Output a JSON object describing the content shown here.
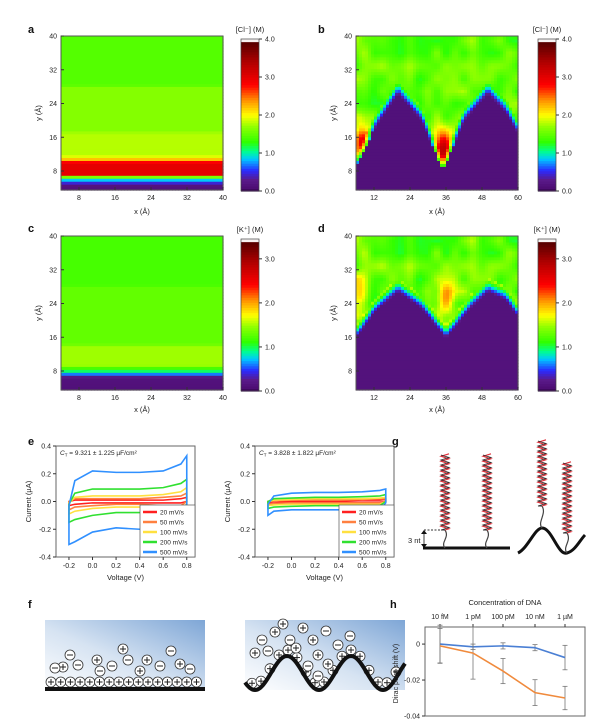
{
  "panel_labels": {
    "a": "a",
    "b": "b",
    "c": "c",
    "d": "d",
    "e": "e",
    "f": "f",
    "g": "g",
    "h": "h"
  },
  "chart_data": [
    {
      "id": "a",
      "type": "heatmap",
      "xlabel": "x (Å)",
      "ylabel": "y (Å)",
      "xlim": [
        4,
        40
      ],
      "ylim": [
        3.5,
        40
      ],
      "xticks": [
        "8",
        "16",
        "24",
        "32",
        "40"
      ],
      "yticks": [
        "8",
        "16",
        "24",
        "32",
        "40"
      ],
      "colorbar": {
        "label": "[Cl⁻] (M)",
        "range": [
          0,
          4.0
        ],
        "ticks": [
          "0.0",
          "1.0",
          "2.0",
          "3.0",
          "4.0"
        ]
      },
      "profile_y_conc": [
        [
          3.5,
          0.15
        ],
        [
          4.8,
          0.2
        ],
        [
          5.5,
          0.6
        ],
        [
          6.2,
          1.0
        ],
        [
          6.8,
          1.8
        ],
        [
          7.3,
          3.0
        ],
        [
          10,
          3.0
        ],
        [
          10.6,
          2.4
        ],
        [
          11.2,
          2.0
        ],
        [
          12,
          1.8
        ],
        [
          17,
          1.8
        ],
        [
          17.5,
          1.65
        ],
        [
          28,
          1.65
        ],
        [
          28.5,
          1.45
        ],
        [
          40,
          1.45
        ]
      ]
    },
    {
      "id": "b",
      "type": "heatmap",
      "xlabel": "x (Å)",
      "ylabel": "y (Å)",
      "xlim": [
        6,
        60
      ],
      "ylim": [
        3.5,
        40
      ],
      "xticks": [
        "12",
        "24",
        "36",
        "48",
        "60"
      ],
      "yticks": [
        "8",
        "16",
        "24",
        "32",
        "40"
      ],
      "colorbar": {
        "label": "[Cl⁻] (M)",
        "range": [
          0,
          4.0
        ],
        "ticks": [
          "0.0",
          "1.0",
          "2.0",
          "3.0",
          "4.0"
        ]
      },
      "surface_profile_x_y": [
        [
          6,
          9
        ],
        [
          12,
          18
        ],
        [
          20,
          26.5
        ],
        [
          28,
          20
        ],
        [
          35,
          8
        ],
        [
          42,
          20
        ],
        [
          50,
          26.5
        ],
        [
          56,
          22
        ],
        [
          60,
          17
        ]
      ],
      "bulk_conc": 1.5,
      "hotspots": [
        {
          "x": 8,
          "y": 15,
          "value": 3.0
        },
        {
          "x": 35,
          "y": 13,
          "value": 3.2
        }
      ]
    },
    {
      "id": "c",
      "type": "heatmap",
      "xlabel": "x (Å)",
      "ylabel": "y (Å)",
      "xlim": [
        4,
        40
      ],
      "ylim": [
        3.5,
        40
      ],
      "xticks": [
        "8",
        "16",
        "24",
        "32",
        "40"
      ],
      "yticks": [
        "8",
        "16",
        "24",
        "32",
        "40"
      ],
      "colorbar": {
        "label": "[K⁺] (M)",
        "range": [
          0,
          3.45
        ],
        "ticks": [
          "0.0",
          "1.0",
          "2.0",
          "3.0"
        ]
      },
      "profile_y_conc": [
        [
          3.5,
          0.12
        ],
        [
          6.5,
          0.15
        ],
        [
          7.2,
          0.5
        ],
        [
          7.8,
          0.9
        ],
        [
          8.5,
          1.1
        ],
        [
          9.5,
          1.5
        ],
        [
          14,
          1.5
        ],
        [
          14.5,
          1.3
        ],
        [
          28,
          1.3
        ],
        [
          28.5,
          1.2
        ],
        [
          40,
          1.2
        ]
      ]
    },
    {
      "id": "d",
      "type": "heatmap",
      "xlabel": "x (Å)",
      "ylabel": "y (Å)",
      "xlim": [
        6,
        60
      ],
      "ylim": [
        3.5,
        40
      ],
      "xticks": [
        "12",
        "24",
        "36",
        "48",
        "60"
      ],
      "yticks": [
        "8",
        "16",
        "24",
        "32",
        "40"
      ],
      "colorbar": {
        "label": "[K⁺] (M)",
        "range": [
          0,
          3.45
        ],
        "ticks": [
          "0.0",
          "1.0",
          "2.0",
          "3.0"
        ]
      },
      "surface_profile_x_y": [
        [
          6,
          16
        ],
        [
          12,
          22
        ],
        [
          20,
          27
        ],
        [
          28,
          23
        ],
        [
          36,
          16
        ],
        [
          44,
          23
        ],
        [
          50,
          27
        ],
        [
          56,
          25
        ],
        [
          60,
          21
        ]
      ],
      "bulk_conc": 1.3,
      "hotspots": [
        {
          "x": 36,
          "y": 25,
          "value": 2.0
        },
        {
          "x": 7,
          "y": 26,
          "value": 1.9
        }
      ]
    },
    {
      "id": "e-left",
      "type": "line",
      "annotation": {
        "symbol": "C",
        "sub": "T",
        "text": " = 9.321 ± 1.225 µF/cm²"
      },
      "xlabel": "Voltage (V)",
      "ylabel": "Current (µA)",
      "xlim": [
        -0.31,
        0.87
      ],
      "ylim": [
        -0.4,
        0.4
      ],
      "xticks": [
        "-0.2",
        "0.0",
        "0.2",
        "0.4",
        "0.6",
        "0.8"
      ],
      "yticks": [
        "-0.4",
        "-0.2",
        "0.0",
        "0.2",
        "0.4"
      ],
      "x": [
        -0.2,
        -0.15,
        0,
        0.2,
        0.4,
        0.6,
        0.75,
        0.8
      ],
      "legend_position": "bottom-right",
      "series": [
        {
          "name": "20 mV/s",
          "color": "#ff2020",
          "upper": [
            0,
            0.01,
            0.01,
            0.01,
            0.01,
            0.01,
            0.02,
            0.03
          ],
          "lower": [
            -0.03,
            -0.02,
            -0.01,
            -0.01,
            -0.01,
            -0.01,
            -0.01,
            0
          ]
        },
        {
          "name": "50 mV/s",
          "color": "#ff8040",
          "upper": [
            0,
            0.02,
            0.02,
            0.02,
            0.02,
            0.03,
            0.04,
            0.06
          ],
          "lower": [
            -0.06,
            -0.04,
            -0.03,
            -0.02,
            -0.02,
            -0.03,
            -0.03,
            0
          ]
        },
        {
          "name": "100 mV/s",
          "color": "#ffe040",
          "upper": [
            -0.01,
            0.03,
            0.04,
            0.04,
            0.04,
            0.05,
            0.07,
            0.1
          ],
          "lower": [
            -0.09,
            -0.07,
            -0.05,
            -0.04,
            -0.04,
            -0.05,
            -0.05,
            -0.02
          ]
        },
        {
          "name": "200 mV/s",
          "color": "#30e030",
          "upper": [
            -0.02,
            0.06,
            0.09,
            0.09,
            0.09,
            0.1,
            0.13,
            0.16
          ],
          "lower": [
            -0.15,
            -0.13,
            -0.1,
            -0.08,
            -0.08,
            -0.09,
            -0.1,
            -0.02
          ]
        },
        {
          "name": "500 mV/s",
          "color": "#3090ff",
          "upper": [
            -0.03,
            0.15,
            0.22,
            0.21,
            0.21,
            0.22,
            0.27,
            0.33
          ],
          "lower": [
            -0.31,
            -0.29,
            -0.22,
            -0.19,
            -0.2,
            -0.2,
            -0.2,
            -0.02
          ]
        }
      ]
    },
    {
      "id": "e-right",
      "type": "line",
      "annotation": {
        "symbol": "C",
        "sub": "T",
        "text": " = 3.828 ± 1.822 µF/cm²"
      },
      "xlabel": "Voltage (V)",
      "ylabel": "Current (µA)",
      "xlim": [
        -0.31,
        0.87
      ],
      "ylim": [
        -0.4,
        0.4
      ],
      "xticks": [
        "-0.2",
        "0.0",
        "0.2",
        "0.4",
        "0.6",
        "0.8"
      ],
      "yticks": [
        "-0.4",
        "-0.2",
        "0.0",
        "0.2",
        "0.4"
      ],
      "x": [
        -0.2,
        -0.15,
        0,
        0.2,
        0.4,
        0.6,
        0.75,
        0.8
      ],
      "legend_position": "bottom-right",
      "series": [
        {
          "name": "20 mV/s",
          "color": "#ff2020",
          "upper": [
            0,
            0.003,
            0.005,
            0.005,
            0.005,
            0.01,
            0.01,
            0.015
          ],
          "lower": [
            -0.01,
            -0.01,
            -0.005,
            -0.005,
            -0.005,
            -0.005,
            -0.005,
            0
          ]
        },
        {
          "name": "50 mV/s",
          "color": "#ff8040",
          "upper": [
            0,
            0.005,
            0.01,
            0.01,
            0.01,
            0.015,
            0.02,
            0.02
          ],
          "lower": [
            -0.02,
            -0.015,
            -0.01,
            -0.01,
            -0.01,
            -0.01,
            -0.01,
            0
          ]
        },
        {
          "name": "100 mV/s",
          "color": "#ffe040",
          "upper": [
            0,
            0.01,
            0.015,
            0.02,
            0.02,
            0.02,
            0.025,
            0.03
          ],
          "lower": [
            -0.03,
            -0.025,
            -0.02,
            -0.02,
            -0.02,
            -0.02,
            -0.02,
            0
          ]
        },
        {
          "name": "200 mV/s",
          "color": "#30e030",
          "upper": [
            0,
            0.02,
            0.025,
            0.03,
            0.03,
            0.035,
            0.04,
            0.05
          ],
          "lower": [
            -0.05,
            -0.04,
            -0.035,
            -0.03,
            -0.03,
            -0.03,
            -0.03,
            0
          ]
        },
        {
          "name": "500 mV/s",
          "color": "#3090ff",
          "upper": [
            -0.02,
            0.04,
            0.06,
            0.065,
            0.065,
            0.07,
            0.08,
            0.09
          ],
          "lower": [
            -0.1,
            -0.07,
            -0.06,
            -0.06,
            -0.06,
            -0.06,
            -0.06,
            -0.01
          ]
        }
      ]
    },
    {
      "id": "h",
      "type": "line",
      "xlabel": "Concentration of DNA",
      "ylabel": "Dirac point shift  (V)",
      "categories": [
        "10 fM",
        "1 pM",
        "100 pM",
        "10 nM",
        "1 µM"
      ],
      "ylim": [
        -0.04,
        0.0095
      ],
      "yticks": [
        "0",
        "-0.02",
        "-0.04"
      ],
      "series": [
        {
          "color": "#4a7fd4",
          "values": [
            0,
            -0.0015,
            -0.001,
            -0.002,
            -0.0075
          ],
          "errors": [
            0.0105,
            0.0015,
            0.0017,
            0.0017,
            0.0068
          ]
        },
        {
          "color": "#f08a3c",
          "values": [
            -0.001,
            -0.005,
            -0.015,
            -0.027,
            -0.03
          ],
          "errors": [
            0.0097,
            0.0145,
            0.007,
            0.0072,
            0.0065
          ]
        }
      ]
    }
  ],
  "schematic_g": {
    "label_3nt": "3 nt"
  }
}
